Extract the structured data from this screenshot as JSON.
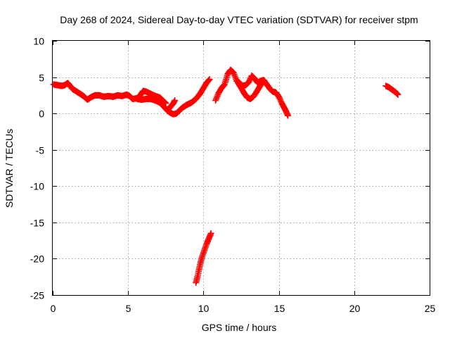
{
  "chart_data": {
    "type": "scatter",
    "title": "Day 268 of 2024, Sidereal Day-to-day VTEC variation (SDTVAR) for receiver stpm",
    "xlabel": "GPS time / hours",
    "ylabel": "SDTVAR / TECUs",
    "xlim": [
      0,
      25
    ],
    "ylim": [
      -25,
      10
    ],
    "xticks": [
      "0",
      "5",
      "10",
      "15",
      "20",
      "25"
    ],
    "yticks": [
      "10",
      "5",
      "0",
      "-5",
      "-10",
      "-15",
      "-20",
      "-25"
    ],
    "grid": true,
    "marker": "+",
    "color": "#ff0000",
    "series": [
      {
        "name": "arc-1",
        "x": [
          0.05,
          0.3,
          0.6,
          0.8,
          1.0,
          1.3,
          1.6,
          1.9,
          2.1,
          2.3,
          2.5,
          2.8,
          3.1,
          3.4,
          3.7,
          4.0,
          4.3,
          4.6,
          4.9,
          5.1,
          5.3,
          5.6,
          5.8,
          6.0,
          6.2,
          6.5,
          6.8,
          7.1,
          7.3,
          7.5
        ],
        "y": [
          4.0,
          3.9,
          3.8,
          3.9,
          4.2,
          3.4,
          3.0,
          2.6,
          2.3,
          1.9,
          2.2,
          2.5,
          2.5,
          2.3,
          2.4,
          2.3,
          2.5,
          2.4,
          2.6,
          2.4,
          2.0,
          2.1,
          2.5,
          3.1,
          3.0,
          2.7,
          2.4,
          2.2,
          1.8,
          1.4
        ]
      },
      {
        "name": "arc-2",
        "x": [
          5.6,
          5.9,
          6.2,
          6.5,
          6.8,
          7.1,
          7.4,
          7.6,
          7.8,
          8.0,
          8.2,
          8.4,
          8.6,
          8.9,
          9.2,
          9.5,
          9.8,
          10.0,
          10.2,
          10.4
        ],
        "y": [
          2.0,
          1.9,
          2.0,
          2.0,
          1.8,
          1.5,
          0.9,
          0.4,
          0.1,
          -0.1,
          0.0,
          0.4,
          0.8,
          1.2,
          1.5,
          2.0,
          2.8,
          3.5,
          4.2,
          4.7
        ]
      },
      {
        "name": "arc-3",
        "x": [
          7.6,
          7.8,
          8.0,
          8.1
        ],
        "y": [
          0.4,
          0.9,
          1.4,
          1.8
        ]
      },
      {
        "name": "arc-4",
        "x": [
          10.8,
          11.0,
          11.2,
          11.4,
          11.6,
          11.8,
          12.0,
          12.2,
          12.4,
          12.6,
          12.8,
          13.0,
          13.2,
          13.4,
          13.6,
          13.8,
          14.0,
          14.2,
          14.4,
          14.6,
          14.8,
          15.0,
          15.2,
          15.4,
          15.5,
          15.6
        ],
        "y": [
          1.8,
          2.8,
          3.5,
          4.0,
          5.4,
          6.0,
          5.6,
          4.5,
          4.2,
          3.8,
          3.9,
          4.3,
          5.2,
          4.8,
          4.2,
          4.5,
          4.6,
          4.0,
          3.4,
          3.0,
          2.9,
          2.3,
          1.4,
          0.6,
          0.2,
          -0.3
        ]
      },
      {
        "name": "arc-5",
        "x": [
          12.3,
          12.5,
          12.7,
          12.9,
          13.1,
          13.3,
          13.5,
          13.7,
          13.9
        ],
        "y": [
          4.2,
          3.5,
          2.8,
          2.2,
          2.0,
          2.3,
          2.9,
          3.6,
          4.3
        ]
      },
      {
        "name": "arc-6",
        "x": [
          9.5,
          9.6,
          9.7,
          9.8,
          9.9,
          10.0,
          10.1,
          10.2,
          10.3,
          10.4,
          10.5
        ],
        "y": [
          -23.3,
          -22.5,
          -21.5,
          -20.6,
          -19.8,
          -19.2,
          -18.6,
          -18.0,
          -17.5,
          -17.0,
          -16.5
        ]
      },
      {
        "name": "arc-7",
        "x": [
          22.1,
          22.3,
          22.5,
          22.7,
          22.9
        ],
        "y": [
          3.8,
          3.6,
          3.3,
          3.0,
          2.6
        ]
      }
    ]
  }
}
